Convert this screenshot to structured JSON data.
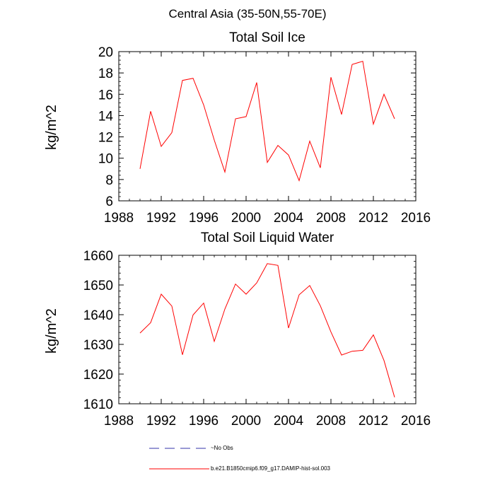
{
  "figure": {
    "suptitle": "Central Asia (35-50N,55-70E)"
  },
  "chart_data": [
    {
      "type": "line",
      "title": "Total Soil Ice",
      "xlabel": "",
      "ylabel": "kg/m^2",
      "xlim": [
        1988,
        2016
      ],
      "ylim": [
        6,
        20
      ],
      "xticks": [
        1988,
        1992,
        1996,
        2000,
        2004,
        2008,
        2012,
        2016
      ],
      "yticks": [
        6,
        8,
        10,
        12,
        14,
        16,
        18,
        20
      ],
      "grid": false,
      "x": [
        1990,
        1991,
        1992,
        1993,
        1994,
        1995,
        1996,
        1997,
        1998,
        1999,
        2000,
        2001,
        2002,
        2003,
        2004,
        2005,
        2006,
        2007,
        2008,
        2009,
        2010,
        2011,
        2012,
        2013,
        2014
      ],
      "series": [
        {
          "name": "b.e21.B1850cmip6.f09_g17.DAMIP-hist-sol.003",
          "color": "#ff0000",
          "values": [
            9.0,
            14.4,
            11.1,
            12.4,
            17.3,
            17.5,
            15.0,
            11.7,
            8.7,
            13.7,
            13.9,
            17.1,
            9.6,
            11.2,
            10.3,
            7.9,
            11.6,
            9.1,
            17.6,
            14.1,
            18.8,
            19.1,
            13.2,
            16.0,
            13.7
          ]
        }
      ]
    },
    {
      "type": "line",
      "title": "Total Soil Liquid Water",
      "xlabel": "",
      "ylabel": "kg/m^2",
      "xlim": [
        1988,
        2016
      ],
      "ylim": [
        1610,
        1660
      ],
      "xticks": [
        1988,
        1992,
        1996,
        2000,
        2004,
        2008,
        2012,
        2016
      ],
      "yticks": [
        1610,
        1620,
        1630,
        1640,
        1650,
        1660
      ],
      "grid": false,
      "x": [
        1990,
        1991,
        1992,
        1993,
        1994,
        1995,
        1996,
        1997,
        1998,
        1999,
        2000,
        2001,
        2002,
        2003,
        2004,
        2005,
        2006,
        2007,
        2008,
        2009,
        2010,
        2011,
        2012,
        2013,
        2014
      ],
      "series": [
        {
          "name": "b.e21.B1850cmip6.f09_g17.DAMIP-hist-sol.003",
          "color": "#ff0000",
          "values": [
            1633.8,
            1637.3,
            1646.9,
            1642.9,
            1626.5,
            1639.9,
            1643.9,
            1631.0,
            1641.9,
            1650.3,
            1646.9,
            1650.7,
            1657.2,
            1656.6,
            1635.5,
            1646.7,
            1649.8,
            1643.0,
            1634.2,
            1626.4,
            1627.7,
            1628.0,
            1633.2,
            1624.6,
            1612.2
          ]
        }
      ]
    }
  ],
  "legend": {
    "placement": "bottom",
    "items": [
      {
        "label": "No Obs",
        "color": "#3333aa",
        "style": "dashed"
      },
      {
        "label": "b.e21.B1850cmip6.f09_g17.DAMIP-hist-sol.003",
        "color": "#ff0000",
        "style": "solid"
      }
    ]
  }
}
